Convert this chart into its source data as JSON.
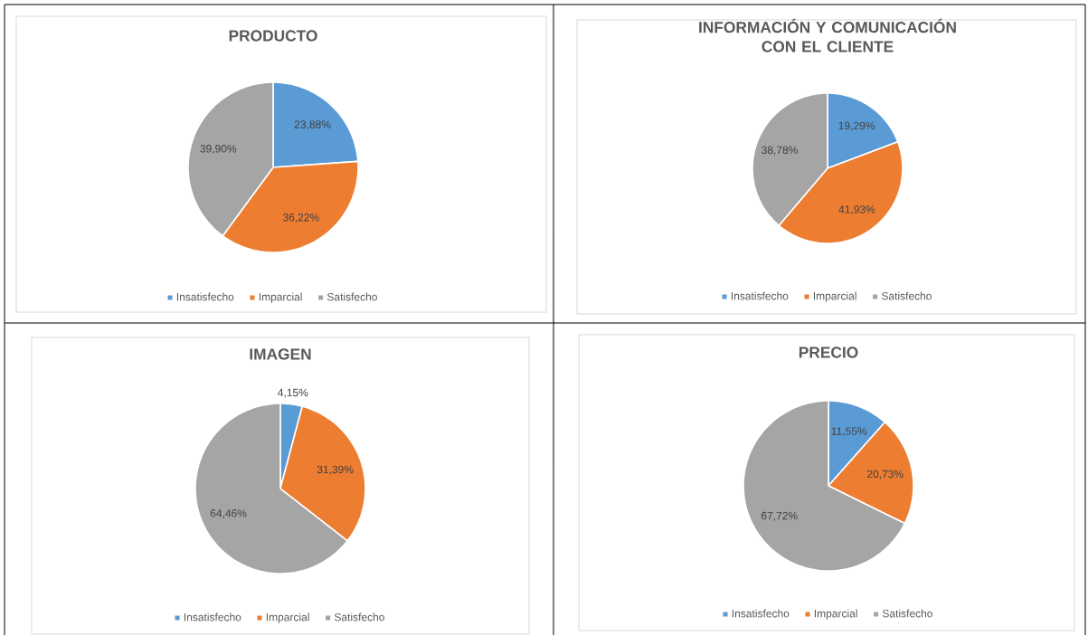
{
  "chart_data": [
    {
      "type": "pie",
      "title": "PRODUCTO",
      "categories": [
        "Insatisfecho",
        "Imparcial",
        "Satisfecho"
      ],
      "values": [
        23.88,
        36.22,
        39.9
      ],
      "colors": [
        "#5b9bd5",
        "#ed7d31",
        "#a5a5a5"
      ],
      "value_labels": [
        "23,88%",
        "36,22%",
        "39,90%"
      ],
      "legend": "bottom"
    },
    {
      "type": "pie",
      "title": "INFORMACIÓN Y COMUNICACIÓN CON EL CLIENTE",
      "categories": [
        "Insatisfecho",
        "Imparcial",
        "Satisfecho"
      ],
      "values": [
        19.29,
        41.93,
        38.78
      ],
      "colors": [
        "#5b9bd5",
        "#ed7d31",
        "#a5a5a5"
      ],
      "value_labels": [
        "19,29%",
        "41,93%",
        "38,78%"
      ],
      "legend": "bottom"
    },
    {
      "type": "pie",
      "title": "IMAGEN",
      "categories": [
        "Insatisfecho",
        "Imparcial",
        "Satisfecho"
      ],
      "values": [
        4.15,
        31.39,
        64.46
      ],
      "colors": [
        "#5b9bd5",
        "#ed7d31",
        "#a5a5a5"
      ],
      "value_labels": [
        "4,15%",
        "31,39%",
        "64,46%"
      ],
      "legend": "bottom"
    },
    {
      "type": "pie",
      "title": "PRECIO",
      "categories": [
        "Insatisfecho",
        "Imparcial",
        "Satisfecho"
      ],
      "values": [
        11.55,
        20.73,
        67.72
      ],
      "colors": [
        "#5b9bd5",
        "#ed7d31",
        "#a5a5a5"
      ],
      "value_labels": [
        "11,55%",
        "20,73%",
        "67,72%"
      ],
      "legend": "bottom"
    }
  ]
}
